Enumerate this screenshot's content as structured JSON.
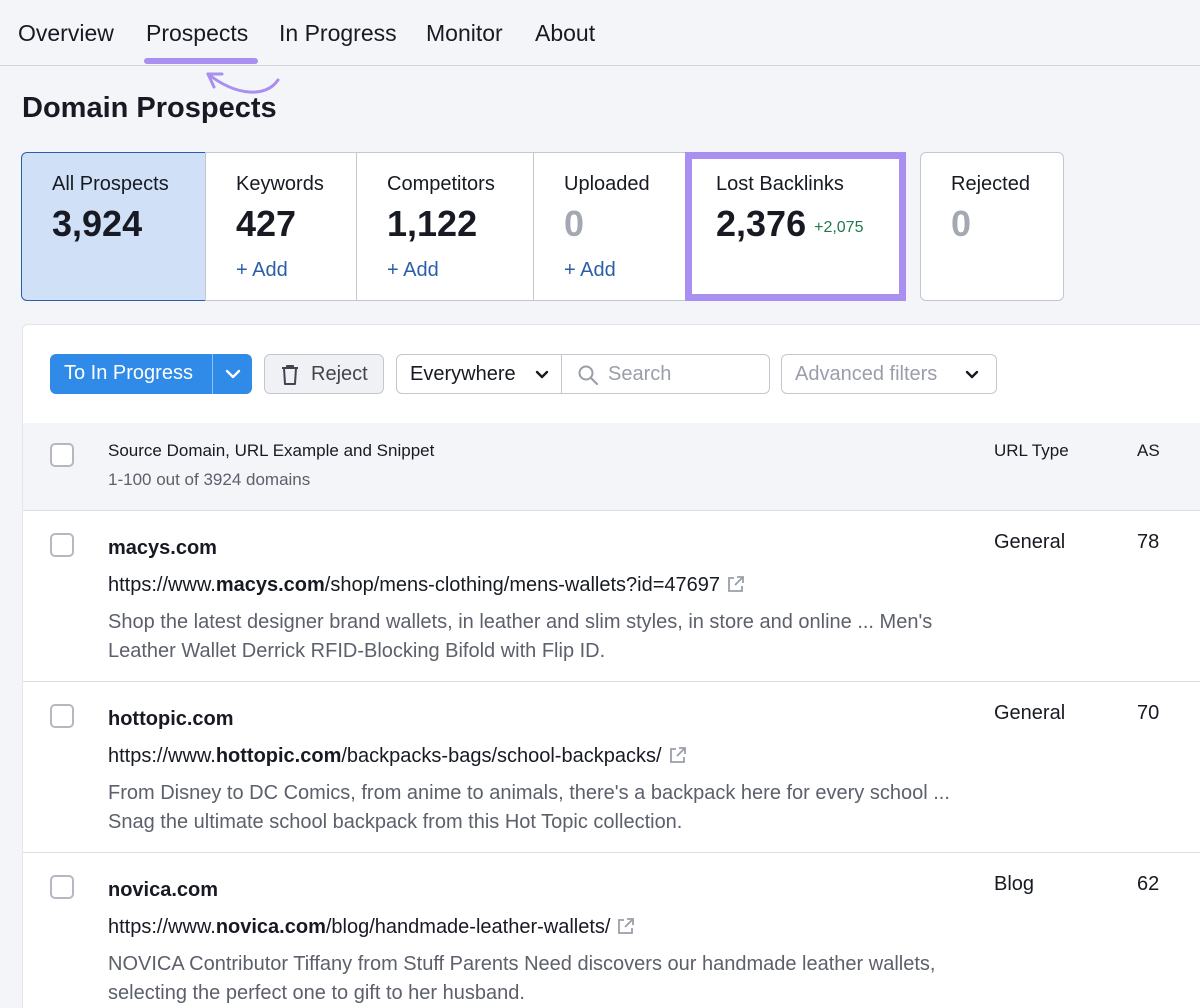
{
  "nav": {
    "tabs": [
      {
        "label": "Overview"
      },
      {
        "label": "Prospects",
        "active": true
      },
      {
        "label": "In Progress"
      },
      {
        "label": "Monitor"
      },
      {
        "label": "About"
      }
    ],
    "accent_color": "#a98ff0"
  },
  "page": {
    "title": "Domain Prospects"
  },
  "cards": [
    {
      "label": "All Prospects",
      "value": "3,924",
      "active": true
    },
    {
      "label": "Keywords",
      "value": "427",
      "action": "+ Add"
    },
    {
      "label": "Competitors",
      "value": "1,122",
      "action": "+ Add"
    },
    {
      "label": "Uploaded",
      "value": "0",
      "action": "+ Add"
    },
    {
      "label": "Lost Backlinks",
      "value": "2,376",
      "delta": "+2,075",
      "highlighted": true
    },
    {
      "label": "Rejected",
      "value": "0"
    }
  ],
  "toolbar": {
    "primary_label": "To In Progress",
    "reject_label": "Reject",
    "scope_value": "Everywhere",
    "search_placeholder": "Search",
    "advanced_filters_label": "Advanced filters",
    "primary_color": "#2f8ae8"
  },
  "table": {
    "header": {
      "source": "Source Domain, URL Example and Snippet",
      "count": "1-100 out of 3924 domains",
      "url_type": "URL Type",
      "as": "AS"
    },
    "rows": [
      {
        "domain": "macys.com",
        "url_prefix": "https://www.",
        "url_domain": "macys.com",
        "url_path": "/shop/mens-clothing/mens-wallets?id=47697",
        "snippet": "Shop the latest designer brand wallets, in leather and slim styles, in store and online ... Men's Leather Wallet Derrick RFID-Blocking Bifold with Flip ID.",
        "url_type": "General",
        "as": "78"
      },
      {
        "domain": "hottopic.com",
        "url_prefix": "https://www.",
        "url_domain": "hottopic.com",
        "url_path": "/backpacks-bags/school-backpacks/",
        "snippet": "From Disney to DC Comics, from anime to animals, there's a backpack here for every school ... Snag the ultimate school backpack from this Hot Topic collection.",
        "url_type": "General",
        "as": "70"
      },
      {
        "domain": "novica.com",
        "url_prefix": "https://www.",
        "url_domain": "novica.com",
        "url_path": "/blog/handmade-leather-wallets/",
        "snippet": "NOVICA Contributor Tiffany from Stuff Parents Need discovers our handmade leather wallets, selecting the perfect one to gift to her husband.",
        "url_type": "Blog",
        "as": "62"
      }
    ]
  }
}
